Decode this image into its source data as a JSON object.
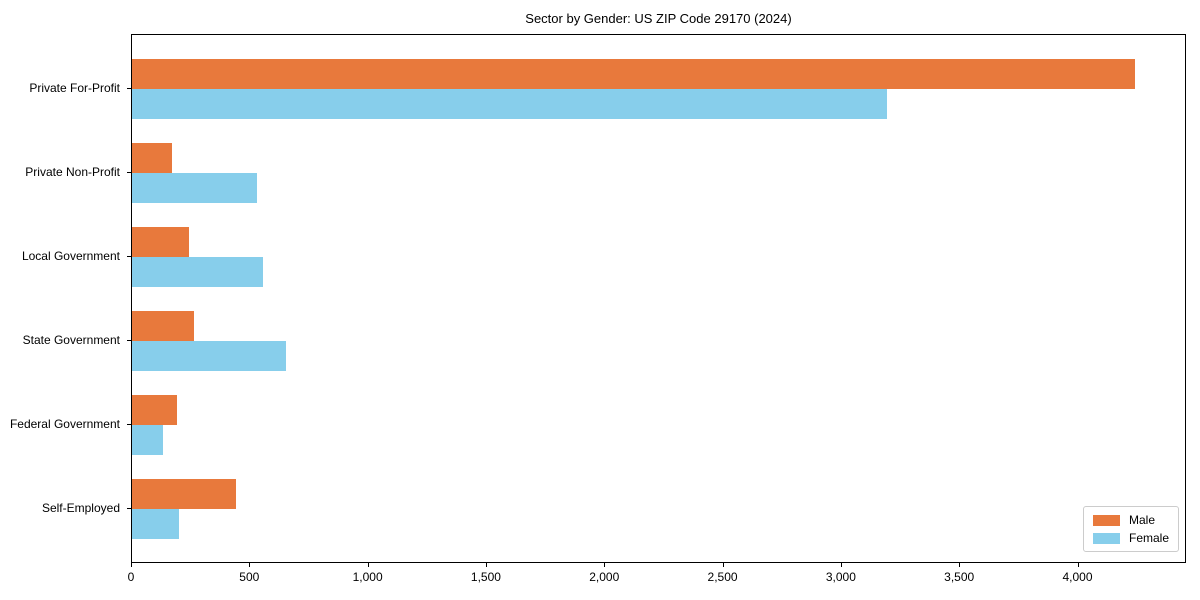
{
  "chart_data": {
    "type": "bar",
    "orientation": "horizontal",
    "title": "Sector by Gender: US ZIP Code 29170 (2024)",
    "categories": [
      "Private For-Profit",
      "Private Non-Profit",
      "Local Government",
      "State Government",
      "Federal Government",
      "Self-Employed"
    ],
    "series": [
      {
        "name": "Male",
        "color": "#e8793c",
        "values": [
          4240,
          170,
          240,
          260,
          190,
          440
        ]
      },
      {
        "name": "Female",
        "color": "#87ceeb",
        "values": [
          3190,
          530,
          555,
          650,
          130,
          200
        ]
      }
    ],
    "xlabel": "",
    "ylabel": "",
    "xlim": [
      0,
      4450
    ],
    "xticks": [
      0,
      500,
      1000,
      1500,
      2000,
      2500,
      3000,
      3500,
      4000
    ],
    "xtick_labels": [
      "0",
      "500",
      "1,000",
      "1,500",
      "2,000",
      "2,500",
      "3,000",
      "3,500",
      "4,000"
    ],
    "grid": false,
    "legend": {
      "position": "lower right",
      "entries": [
        "Male",
        "Female"
      ]
    }
  }
}
